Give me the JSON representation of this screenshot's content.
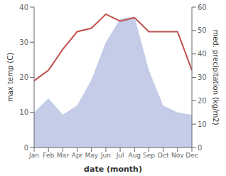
{
  "chart_data": {
    "type": "line",
    "categories": [
      "Jan",
      "Feb",
      "Mar",
      "Apr",
      "May",
      "Jun",
      "Jul",
      "Aug",
      "Sep",
      "Oct",
      "Nov",
      "Dec"
    ],
    "series": [
      {
        "type": "area",
        "axis": "y2",
        "color": "#c5cce8",
        "values": [
          15,
          21,
          14,
          18,
          29,
          45,
          55,
          56,
          33,
          18,
          15,
          14
        ]
      },
      {
        "type": "line",
        "axis": "y",
        "color": "#c0504d",
        "values": [
          19,
          22,
          28,
          33,
          34,
          38,
          36,
          37,
          33,
          33,
          33,
          22
        ]
      }
    ],
    "xlabel": "date (month)",
    "ylabel": "max temp (C)",
    "y2label": "med. precipitation (kg/m2)",
    "ylim": [
      0,
      40
    ],
    "yticks": [
      0,
      10,
      20,
      30,
      40
    ],
    "y2lim": [
      0,
      60
    ],
    "y2ticks": [
      0,
      10,
      20,
      30,
      40,
      50,
      60
    ]
  }
}
